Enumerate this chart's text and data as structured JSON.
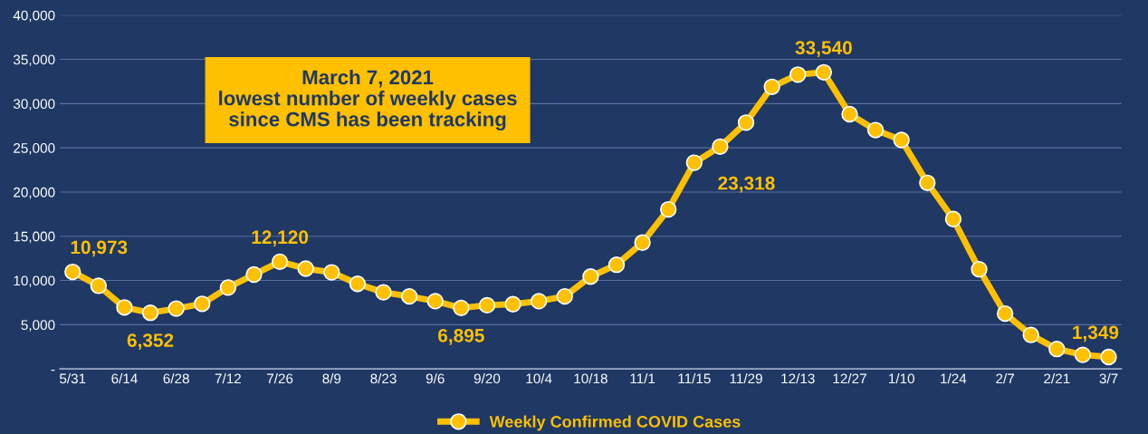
{
  "chart_data": {
    "type": "line",
    "categories": [
      "5/31",
      null,
      "6/14",
      null,
      "6/28",
      null,
      "7/12",
      null,
      "7/26",
      null,
      "8/9",
      null,
      "8/23",
      null,
      "9/6",
      null,
      "9/20",
      null,
      "10/4",
      null,
      "10/18",
      null,
      "11/1",
      null,
      "11/15",
      null,
      "11/29",
      null,
      "12/13",
      null,
      "12/27",
      null,
      "1/10",
      null,
      "1/24",
      null,
      "2/7",
      null,
      "2/21",
      null,
      "3/7"
    ],
    "series": [
      {
        "name": "Weekly Confirmed COVID Cases",
        "color": "#ffc000",
        "values": [
          10973,
          9400,
          6950,
          6352,
          6820,
          7360,
          9200,
          10670,
          12120,
          11340,
          10920,
          9620,
          8660,
          8200,
          7660,
          6895,
          7200,
          7320,
          7660,
          8200,
          10440,
          11780,
          14280,
          18040,
          23318,
          25140,
          27850,
          31900,
          33280,
          33540,
          28810,
          27010,
          25890,
          21040,
          16950,
          11270,
          6260,
          3840,
          2250,
          1590,
          1349
        ],
        "value_labels": [
          "10,973",
          null,
          null,
          "6,352",
          null,
          null,
          null,
          null,
          "12,120",
          null,
          null,
          null,
          null,
          null,
          null,
          "6,895",
          null,
          null,
          null,
          null,
          null,
          null,
          null,
          null,
          "23,318",
          null,
          null,
          null,
          null,
          "33,540",
          null,
          null,
          null,
          null,
          null,
          null,
          null,
          null,
          null,
          null,
          "1,349"
        ]
      }
    ],
    "ylim": [
      0,
      40000
    ],
    "yticks": [
      {
        "value": 0,
        "label": "-"
      },
      {
        "value": 5000,
        "label": "5,000"
      },
      {
        "value": 10000,
        "label": "10,000"
      },
      {
        "value": 15000,
        "label": "15,000"
      },
      {
        "value": 20000,
        "label": "20,000"
      },
      {
        "value": 25000,
        "label": "25,000"
      },
      {
        "value": 30000,
        "label": "30,000"
      },
      {
        "value": 35000,
        "label": "35,000"
      },
      {
        "value": 40000,
        "label": "40,000"
      }
    ],
    "grid": "y",
    "legend": "bottom",
    "marker": "circle",
    "line_style": "solid",
    "annotations": [
      "March 7, 2021\nlowest number of weekly cases\nsince CMS has been tracking"
    ]
  }
}
